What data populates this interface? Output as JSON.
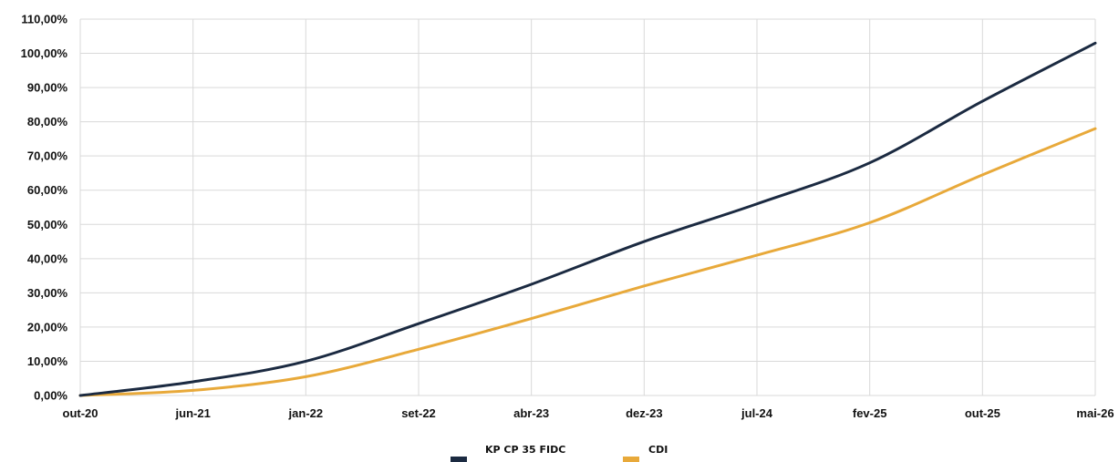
{
  "chart_data": {
    "type": "line",
    "title": "",
    "xlabel": "",
    "ylabel": "",
    "ylim": [
      0,
      110
    ],
    "y_tick_values": [
      0,
      10,
      20,
      30,
      40,
      50,
      60,
      70,
      80,
      90,
      100,
      110
    ],
    "y_tick_labels": [
      "0,00%",
      "10,00%",
      "20,00%",
      "30,00%",
      "40,00%",
      "50,00%",
      "60,00%",
      "70,00%",
      "80,00%",
      "90,00%",
      "100,00%",
      "110,00%"
    ],
    "x_tick_labels": [
      "out-20",
      "jun-21",
      "jan-22",
      "set-22",
      "abr-23",
      "dez-23",
      "jul-24",
      "fev-25",
      "out-25",
      "mai-26"
    ],
    "grid": true,
    "legend_position": "bottom-center",
    "series": [
      {
        "name": "KP CP 35 FIDC",
        "color": "#1b2a41",
        "x": [
          "out-20",
          "jun-21",
          "jan-22",
          "set-22",
          "abr-23",
          "dez-23",
          "jul-24",
          "fev-25",
          "out-25",
          "mai-26"
        ],
        "values": [
          0.0,
          4.0,
          10.0,
          21.0,
          32.5,
          45.0,
          56.0,
          68.0,
          86.0,
          103.0
        ]
      },
      {
        "name": "CDI",
        "color": "#e8a93a",
        "x": [
          "out-20",
          "jun-21",
          "jan-22",
          "set-22",
          "abr-23",
          "dez-23",
          "jul-24",
          "fev-25",
          "out-25",
          "mai-26"
        ],
        "values": [
          0.0,
          1.5,
          5.5,
          13.5,
          22.5,
          32.0,
          41.0,
          50.5,
          64.5,
          78.0
        ]
      }
    ]
  }
}
